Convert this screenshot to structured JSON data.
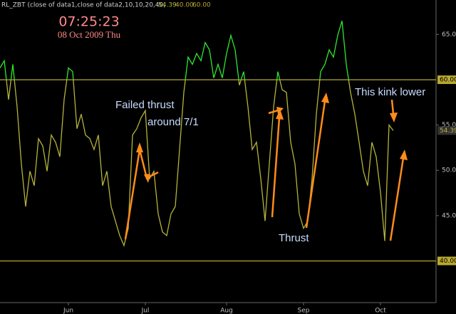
{
  "chart_data": {
    "type": "line",
    "header": {
      "name": "RL_ZBT (close of data1,close of data2,10,10,20,40,",
      "values": [
        "54.39",
        "40.00",
        "60.00"
      ]
    },
    "clock": "07:25:23",
    "date": "08 Oct 2009 Thu",
    "categories": [
      null,
      null,
      null,
      null,
      null,
      null,
      null,
      null,
      null,
      null,
      null,
      null,
      null,
      null,
      null,
      null,
      "Jun",
      null,
      null,
      null,
      null,
      null,
      null,
      null,
      null,
      null,
      null,
      null,
      null,
      null,
      null,
      null,
      null,
      null,
      "Jul",
      null,
      null,
      null,
      null,
      null,
      null,
      null,
      null,
      null,
      null,
      null,
      null,
      null,
      null,
      null,
      null,
      null,
      null,
      "Aug",
      null,
      null,
      null,
      null,
      null,
      null,
      null,
      null,
      null,
      null,
      null,
      null,
      null,
      null,
      null,
      null,
      null,
      "Sep",
      null,
      null,
      null,
      null,
      null,
      null,
      null,
      null,
      null,
      null,
      null,
      null,
      null,
      null,
      null,
      null,
      null,
      "Oct",
      null,
      null,
      null
    ],
    "values": [
      61.3,
      62.1,
      57.8,
      61.7,
      57.0,
      50.7,
      46.0,
      49.9,
      48.3,
      53.5,
      52.7,
      49.9,
      53.9,
      53.1,
      51.5,
      57.8,
      61.3,
      60.9,
      54.6,
      56.2,
      53.9,
      53.5,
      52.3,
      53.9,
      48.3,
      49.9,
      46.0,
      44.4,
      42.8,
      41.7,
      43.6,
      53.9,
      54.6,
      55.8,
      56.6,
      49.1,
      49.9,
      45.2,
      43.2,
      42.8,
      45.2,
      46.0,
      52.3,
      58.6,
      62.5,
      61.7,
      62.9,
      62.1,
      64.1,
      63.3,
      60.2,
      61.7,
      60.2,
      62.9,
      64.9,
      63.3,
      59.4,
      60.9,
      57.0,
      52.3,
      53.1,
      49.1,
      44.4,
      50.7,
      57.0,
      60.9,
      58.9,
      58.6,
      53.1,
      50.7,
      45.2,
      43.6,
      44.4,
      49.1,
      56.2,
      60.9,
      61.7,
      63.3,
      62.5,
      64.9,
      66.5,
      61.7,
      58.6,
      56.2,
      53.1,
      49.9,
      48.3,
      53.1,
      51.5,
      47.6,
      42.2,
      55.0,
      54.39
    ],
    "color": "#b4b43c",
    "color_above": "#2ee82e",
    "last_value_label": "54.39",
    "ylim": [
      35.4,
      68.8
    ],
    "yticks": [
      {
        "value": 45,
        "label": "45.00"
      },
      {
        "value": 50,
        "label": "50.00"
      },
      {
        "value": 55,
        "label": "55.00"
      },
      {
        "value": 65,
        "label": "65.00"
      }
    ],
    "hlines": [
      {
        "value": 60,
        "label": "60.00"
      },
      {
        "value": 40,
        "label": "40.00"
      }
    ],
    "hline_color": "#b8a830",
    "annotations": [
      "Failed thrust",
      "around 7/1",
      "Thrust",
      "This kink lower"
    ]
  }
}
